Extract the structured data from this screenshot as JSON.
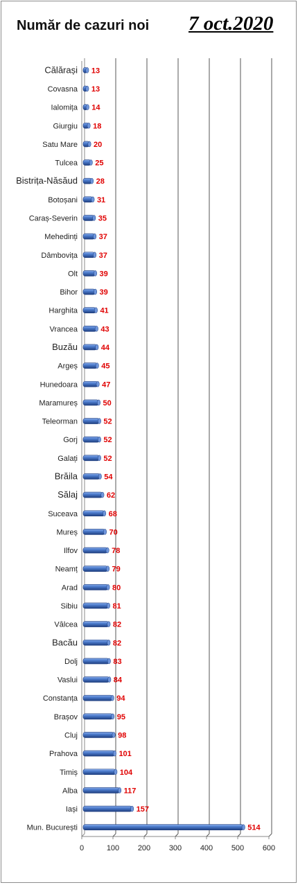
{
  "header": {
    "title": "Număr de cazuri noi",
    "date": "7 oct.2020"
  },
  "chart_data": {
    "type": "bar",
    "orientation": "horizontal",
    "categories": [
      "Călărași",
      "Covasna",
      "Ialomița",
      "Giurgiu",
      "Satu Mare",
      "Tulcea",
      "Bistrița-Năsăud",
      "Botoșani",
      "Caraș-Severin",
      "Mehedinți",
      "Dâmbovița",
      "Olt",
      "Bihor",
      "Harghita",
      "Vrancea",
      "Buzău",
      "Argeș",
      "Hunedoara",
      "Maramureș",
      "Teleorman",
      "Gorj",
      "Galați",
      "Brăila",
      "Sălaj",
      "Suceava",
      "Mureș",
      "Ilfov",
      "Neamț",
      "Arad",
      "Sibiu",
      "Vâlcea",
      "Bacău",
      "Dolj",
      "Vaslui",
      "Constanța",
      "Brașov",
      "Cluj",
      "Prahova",
      "Timiș",
      "Alba",
      "Iași",
      "Mun. București"
    ],
    "values": [
      13,
      13,
      14,
      18,
      20,
      25,
      28,
      31,
      35,
      37,
      37,
      39,
      39,
      41,
      43,
      44,
      45,
      47,
      50,
      52,
      52,
      52,
      54,
      62,
      68,
      70,
      78,
      79,
      80,
      81,
      82,
      82,
      83,
      84,
      94,
      95,
      98,
      101,
      104,
      117,
      157,
      514
    ],
    "xlim": [
      0,
      600
    ],
    "xticks": [
      0,
      100,
      200,
      300,
      400,
      500,
      600
    ],
    "grid": true,
    "bar_color": "#4472c4",
    "value_label_color": "#e00000"
  }
}
